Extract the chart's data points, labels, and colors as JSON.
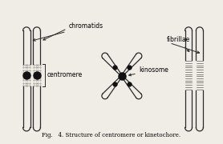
{
  "title": "Fig.   4. Structure of centromere or kinetochore.",
  "bg_color": "#f0ece6",
  "line_color": "#2a2a2a",
  "dot_color": "#111111",
  "label_chromatids": "chromatids",
  "label_centromere": "centromere",
  "label_kinosome": "kinosome",
  "label_fibrillae": "fibrillae",
  "fig_width": 2.78,
  "fig_height": 1.8,
  "dpi": 100
}
